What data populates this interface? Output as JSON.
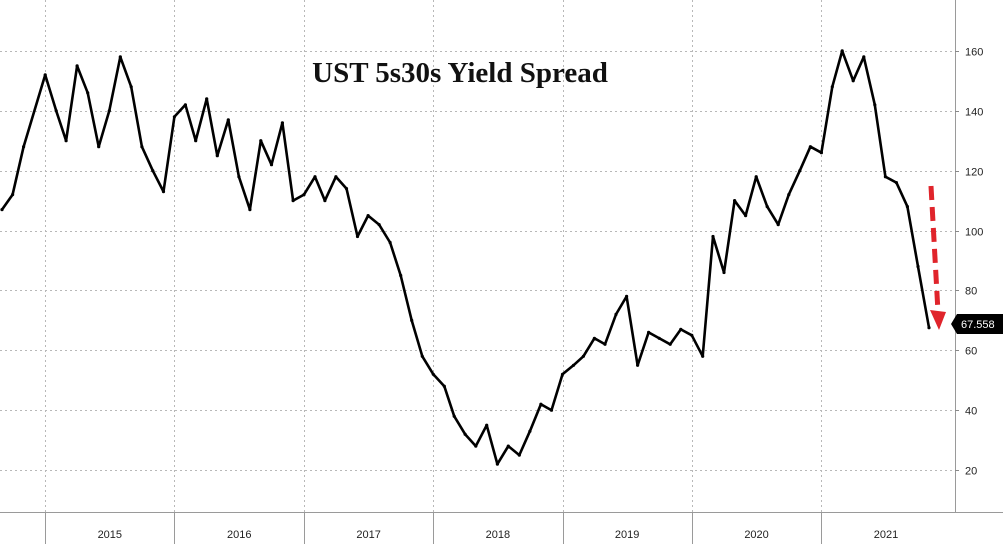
{
  "chart_data": {
    "type": "line",
    "title": "UST 5s30s Yield Spread",
    "xlabel": "",
    "ylabel": "",
    "ylim": [
      6,
      177
    ],
    "y_ticks": [
      20,
      40,
      60,
      80,
      100,
      120,
      140,
      160
    ],
    "y_tick_labels": [
      "20",
      "40",
      "60",
      "80",
      "100",
      "120",
      "140",
      "160"
    ],
    "x_tick_labels": [
      "2015",
      "2016",
      "2017",
      "2018",
      "2019",
      "2020",
      "2021"
    ],
    "grid": true,
    "last_value_label": "67.558",
    "annotation": "red dashed downward arrow at the end of the series",
    "series": [
      {
        "color": "#000000",
        "x": [
          "2014-09-01",
          "2014-10-01",
          "2014-11-01",
          "2015-01-01",
          "2015-02-01",
          "2015-03-01",
          "2015-04-01",
          "2015-05-01",
          "2015-06-01",
          "2015-07-01",
          "2015-08-01",
          "2015-09-01",
          "2015-10-01",
          "2015-11-01",
          "2015-12-01",
          "2016-01-01",
          "2016-02-01",
          "2016-03-01",
          "2016-04-01",
          "2016-05-01",
          "2016-06-01",
          "2016-07-01",
          "2016-08-01",
          "2016-09-01",
          "2016-10-01",
          "2016-11-01",
          "2016-12-01",
          "2017-01-01",
          "2017-02-01",
          "2017-03-01",
          "2017-04-01",
          "2017-05-01",
          "2017-06-01",
          "2017-07-01",
          "2017-08-01",
          "2017-09-01",
          "2017-10-01",
          "2017-11-01",
          "2017-12-01",
          "2018-01-01",
          "2018-02-01",
          "2018-03-01",
          "2018-04-01",
          "2018-05-01",
          "2018-06-01",
          "2018-07-01",
          "2018-08-01",
          "2018-09-01",
          "2018-10-01",
          "2018-11-01",
          "2018-12-01",
          "2019-01-01",
          "2019-02-01",
          "2019-03-01",
          "2019-04-01",
          "2019-05-01",
          "2019-06-01",
          "2019-07-01",
          "2019-08-01",
          "2019-09-01",
          "2019-10-01",
          "2019-11-01",
          "2019-12-01",
          "2020-01-01",
          "2020-02-01",
          "2020-03-01",
          "2020-04-01",
          "2020-05-01",
          "2020-06-01",
          "2020-07-01",
          "2020-08-01",
          "2020-09-01",
          "2020-10-01",
          "2020-11-01",
          "2020-12-01",
          "2021-01-01",
          "2021-02-01",
          "2021-03-01",
          "2021-04-01",
          "2021-05-01",
          "2021-06-01",
          "2021-07-01",
          "2021-08-01",
          "2021-09-01",
          "2021-10-01",
          "2021-11-01"
        ],
        "y": [
          107,
          112,
          128,
          152,
          140,
          130,
          155,
          146,
          128,
          140,
          158,
          148,
          128,
          120,
          113,
          138,
          142,
          130,
          144,
          125,
          137,
          118,
          107,
          130,
          122,
          136,
          110,
          112,
          118,
          110,
          118,
          114,
          98,
          105,
          102,
          96,
          85,
          70,
          58,
          52,
          48,
          38,
          32,
          28,
          35,
          22,
          28,
          25,
          33,
          42,
          40,
          52,
          55,
          58,
          64,
          62,
          72,
          78,
          55,
          66,
          64,
          62,
          67,
          65,
          58,
          98,
          86,
          110,
          105,
          118,
          108,
          102,
          112,
          120,
          128,
          126,
          148,
          160,
          150,
          158,
          142,
          118,
          116,
          108,
          88,
          67.558
        ]
      }
    ]
  }
}
